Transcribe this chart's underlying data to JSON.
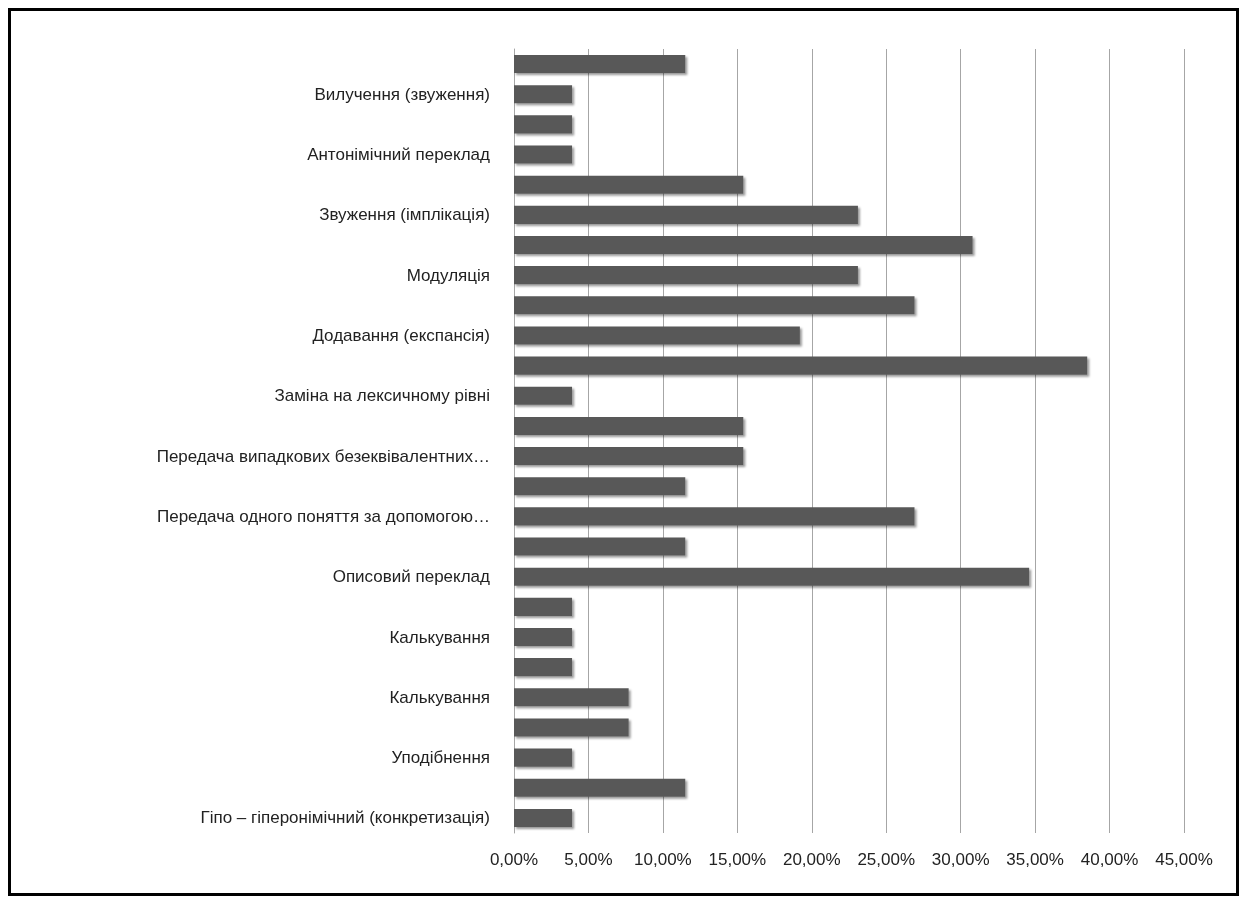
{
  "chart_data": {
    "type": "bar",
    "orientation": "horizontal",
    "categories": [
      null,
      "Вилучення (звуження)",
      null,
      "Антонімічний переклад",
      null,
      "Звуження (імплікація)",
      null,
      "Модуляція",
      null,
      "Додавання (експансія)",
      null,
      "Заміна на лексичному рівні",
      null,
      "Передача випадкових безеквівалентних…",
      null,
      "Передача одного поняття за допомогою…",
      null,
      "Описовий переклад",
      null,
      "Калькування",
      null,
      "Калькування",
      null,
      "Уподібнення",
      null,
      "Гіпо – гіперонімічний (конкретизація)"
    ],
    "values": [
      11.5,
      3.9,
      3.9,
      3.9,
      15.4,
      23.1,
      30.8,
      23.1,
      26.9,
      19.2,
      38.5,
      3.9,
      15.4,
      15.4,
      11.5,
      26.9,
      11.5,
      34.6,
      3.9,
      3.9,
      3.9,
      7.7,
      7.7,
      3.9,
      11.5,
      3.9
    ],
    "color": "#595959",
    "xlim": [
      0,
      45
    ],
    "xticks": [
      {
        "value": 0,
        "label": "0,00%"
      },
      {
        "value": 5,
        "label": "5,00%"
      },
      {
        "value": 10,
        "label": "10,00%"
      },
      {
        "value": 15,
        "label": "15,00%"
      },
      {
        "value": 20,
        "label": "20,00%"
      },
      {
        "value": 25,
        "label": "25,00%"
      },
      {
        "value": 30,
        "label": "30,00%"
      },
      {
        "value": 35,
        "label": "35,00%"
      },
      {
        "value": 40,
        "label": "40,00%"
      },
      {
        "value": 45,
        "label": "45,00%"
      }
    ],
    "grid": "x"
  }
}
